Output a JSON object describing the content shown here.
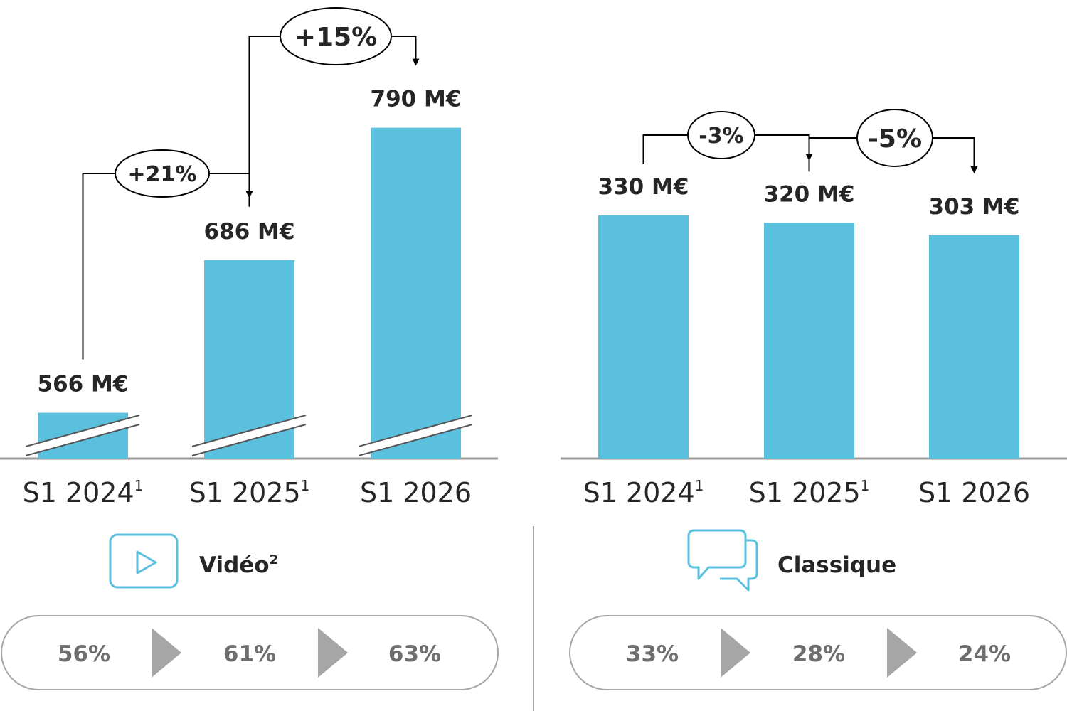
{
  "colors": {
    "bar": "#5bc0de",
    "text": "#262626",
    "share_text": "#6e6e6e",
    "arrow_chevron": "#a6a6a6",
    "pill_border": "#a6a6a6",
    "icon_stroke": "#5bc0de"
  },
  "chart_data": [
    {
      "type": "bar",
      "panel": "left",
      "categories": [
        "S1 2024",
        "S1 2025",
        "S1 2026"
      ],
      "category_footnotes": [
        "1",
        "1",
        ""
      ],
      "values": [
        566,
        686,
        790
      ],
      "value_labels": [
        "566 M€",
        "686 M€",
        "790 M€"
      ],
      "axis_break": true,
      "growth": [
        {
          "from": 0,
          "to": 1,
          "label": "+21%"
        },
        {
          "from": 1,
          "to": 2,
          "label": "+15%"
        }
      ],
      "legend": {
        "label": "Vidéo",
        "footnote": "2",
        "icon": "play-icon"
      },
      "shares": [
        "56%",
        "61%",
        "63%"
      ]
    },
    {
      "type": "bar",
      "panel": "right",
      "categories": [
        "S1 2024",
        "S1 2025",
        "S1 2026"
      ],
      "category_footnotes": [
        "1",
        "1",
        ""
      ],
      "values": [
        330,
        320,
        303
      ],
      "value_labels": [
        "330 M€",
        "320 M€",
        "303 M€"
      ],
      "axis_break": false,
      "growth": [
        {
          "from": 0,
          "to": 1,
          "label": "-3%"
        },
        {
          "from": 1,
          "to": 2,
          "label": "-5%"
        }
      ],
      "legend": {
        "label": "Classique",
        "footnote": "",
        "icon": "speech-bubbles-icon"
      },
      "shares": [
        "33%",
        "28%",
        "24%"
      ]
    }
  ]
}
